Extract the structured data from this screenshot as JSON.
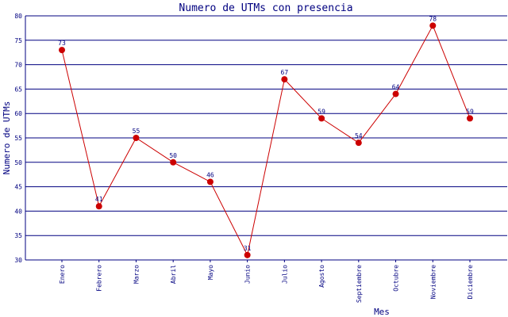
{
  "chart_data": {
    "type": "line",
    "title": "Numero de UTMs con presencia",
    "xlabel": "Mes",
    "ylabel": "Numero de UTMs",
    "categories": [
      "Enero",
      "Febrero",
      "Marzo",
      "Abril",
      "Mayo",
      "Junio",
      "Julio",
      "Agosto",
      "Septiembre",
      "Octubre",
      "Noviembre",
      "Diciembre"
    ],
    "values": [
      73,
      41,
      55,
      50,
      46,
      31,
      67,
      59,
      54,
      64,
      78,
      59
    ],
    "ylim": [
      30,
      80
    ],
    "yticks": [
      30,
      35,
      40,
      45,
      50,
      55,
      60,
      65,
      70,
      75,
      80
    ],
    "grid": true,
    "data_labels": true,
    "colors": {
      "axis": "#000080",
      "line": "#cc0000",
      "marker": "#cc0000",
      "text": "#000080"
    }
  }
}
